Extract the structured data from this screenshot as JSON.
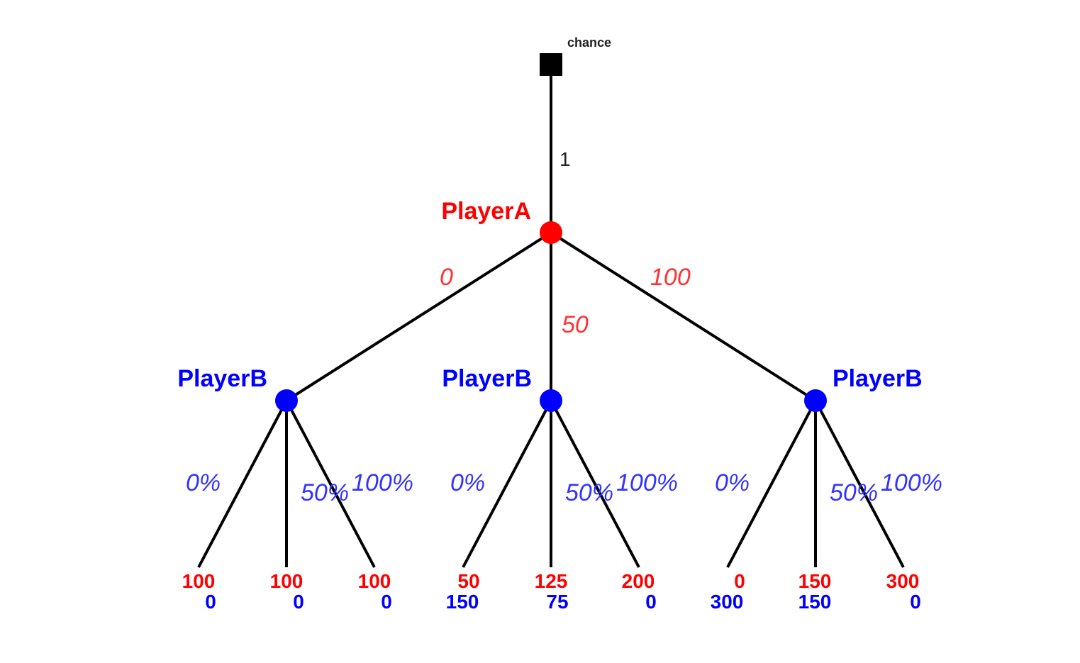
{
  "colors": {
    "playerA": "#ff0000",
    "playerB": "#0000ff",
    "chance": "#000000",
    "edge": "#000000",
    "label_dark": "#222222",
    "action_a": "#ff3333",
    "action_b": "#3333ff"
  },
  "root": {
    "label": "chance",
    "branch_label": "1"
  },
  "playerA": {
    "label": "PlayerA",
    "actions": [
      "0",
      "50",
      "100"
    ]
  },
  "playerB_nodes": [
    {
      "label": "PlayerB",
      "actions": [
        "0%",
        "50%",
        "100%"
      ],
      "payoffs": [
        {
          "a": "100",
          "b": "0"
        },
        {
          "a": "100",
          "b": "0"
        },
        {
          "a": "100",
          "b": "0"
        }
      ]
    },
    {
      "label": "PlayerB",
      "actions": [
        "0%",
        "50%",
        "100%"
      ],
      "payoffs": [
        {
          "a": "50",
          "b": "150"
        },
        {
          "a": "125",
          "b": "75"
        },
        {
          "a": "200",
          "b": "0"
        }
      ]
    },
    {
      "label": "PlayerB",
      "actions": [
        "0%",
        "50%",
        "100%"
      ],
      "payoffs": [
        {
          "a": "0",
          "b": "300"
        },
        {
          "a": "150",
          "b": "150"
        },
        {
          "a": "300",
          "b": "0"
        }
      ]
    }
  ]
}
